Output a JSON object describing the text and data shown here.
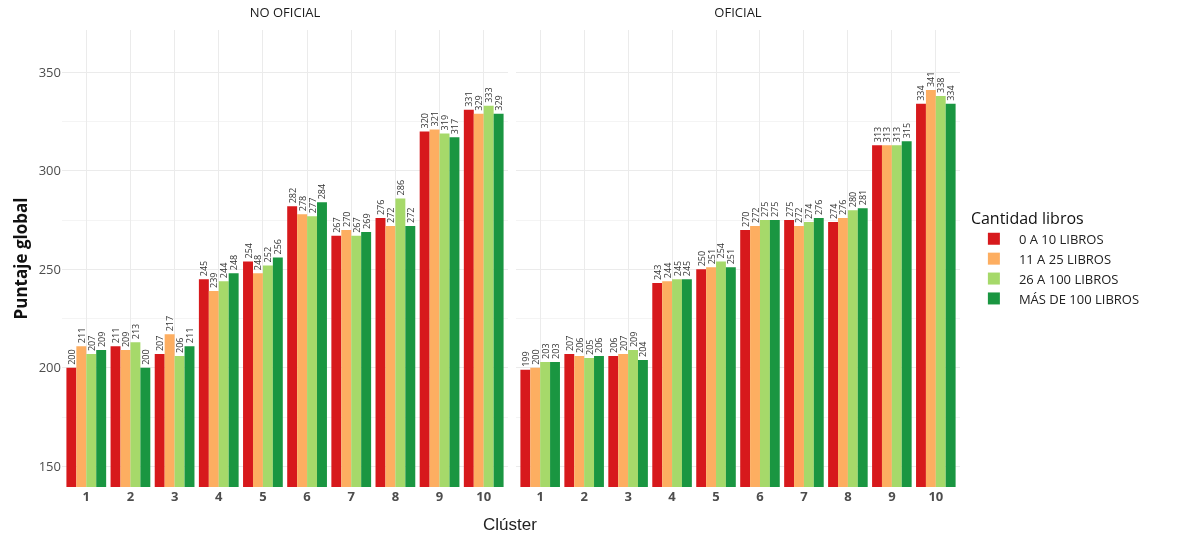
{
  "chart_data": [
    {
      "type": "bar",
      "title": "NO OFICIAL",
      "ylabel": "Puntaje global",
      "xlabel": "Clúster",
      "categories": [
        "1",
        "2",
        "3",
        "4",
        "5",
        "6",
        "7",
        "8",
        "9",
        "10"
      ],
      "ylim": [
        139.5,
        371.5
      ],
      "yticks": [
        150,
        200,
        250,
        300,
        350
      ],
      "grid": true,
      "data_labels": true,
      "series": [
        {
          "color": "#d7191c",
          "values": [
            200,
            211,
            207,
            245,
            254,
            282,
            267,
            276,
            320,
            331
          ]
        },
        {
          "color": "#fdae61",
          "values": [
            211,
            209,
            217,
            239,
            248,
            278,
            270,
            272,
            321,
            329
          ]
        },
        {
          "color": "#a6d96a",
          "values": [
            207,
            213,
            206,
            244,
            252,
            277,
            267,
            286,
            319,
            333
          ]
        },
        {
          "color": "#1a9641",
          "values": [
            209,
            200,
            211,
            248,
            256,
            284,
            269,
            272,
            317,
            329
          ]
        }
      ]
    },
    {
      "type": "bar",
      "title": "OFICIAL",
      "categories": [
        "1",
        "2",
        "3",
        "4",
        "5",
        "6",
        "7",
        "8",
        "9",
        "10"
      ],
      "ylim": [
        139.5,
        371.5
      ],
      "yticks": [
        150,
        200,
        250,
        300,
        350
      ],
      "grid": true,
      "data_labels": true,
      "tick_labels": "x",
      "legend": "right",
      "legend_title": "Cantidad libros",
      "series": [
        {
          "name": "0 A 10 LIBROS",
          "color": "#d7191c",
          "values": [
            199,
            207,
            206,
            243,
            250,
            270,
            275,
            274,
            313,
            334
          ]
        },
        {
          "name": "11 A 25 LIBROS",
          "color": "#fdae61",
          "values": [
            200,
            206,
            207,
            244,
            251,
            272,
            272,
            276,
            313,
            341
          ]
        },
        {
          "name": "26 A 100 LIBROS",
          "color": "#a6d96a",
          "values": [
            203,
            205,
            209,
            245,
            254,
            275,
            274,
            280,
            313,
            338
          ]
        },
        {
          "name": "MÁS DE 100 LIBROS",
          "color": "#1a9641",
          "values": [
            203,
            206,
            204,
            245,
            251,
            275,
            276,
            281,
            315,
            334
          ]
        }
      ]
    }
  ]
}
